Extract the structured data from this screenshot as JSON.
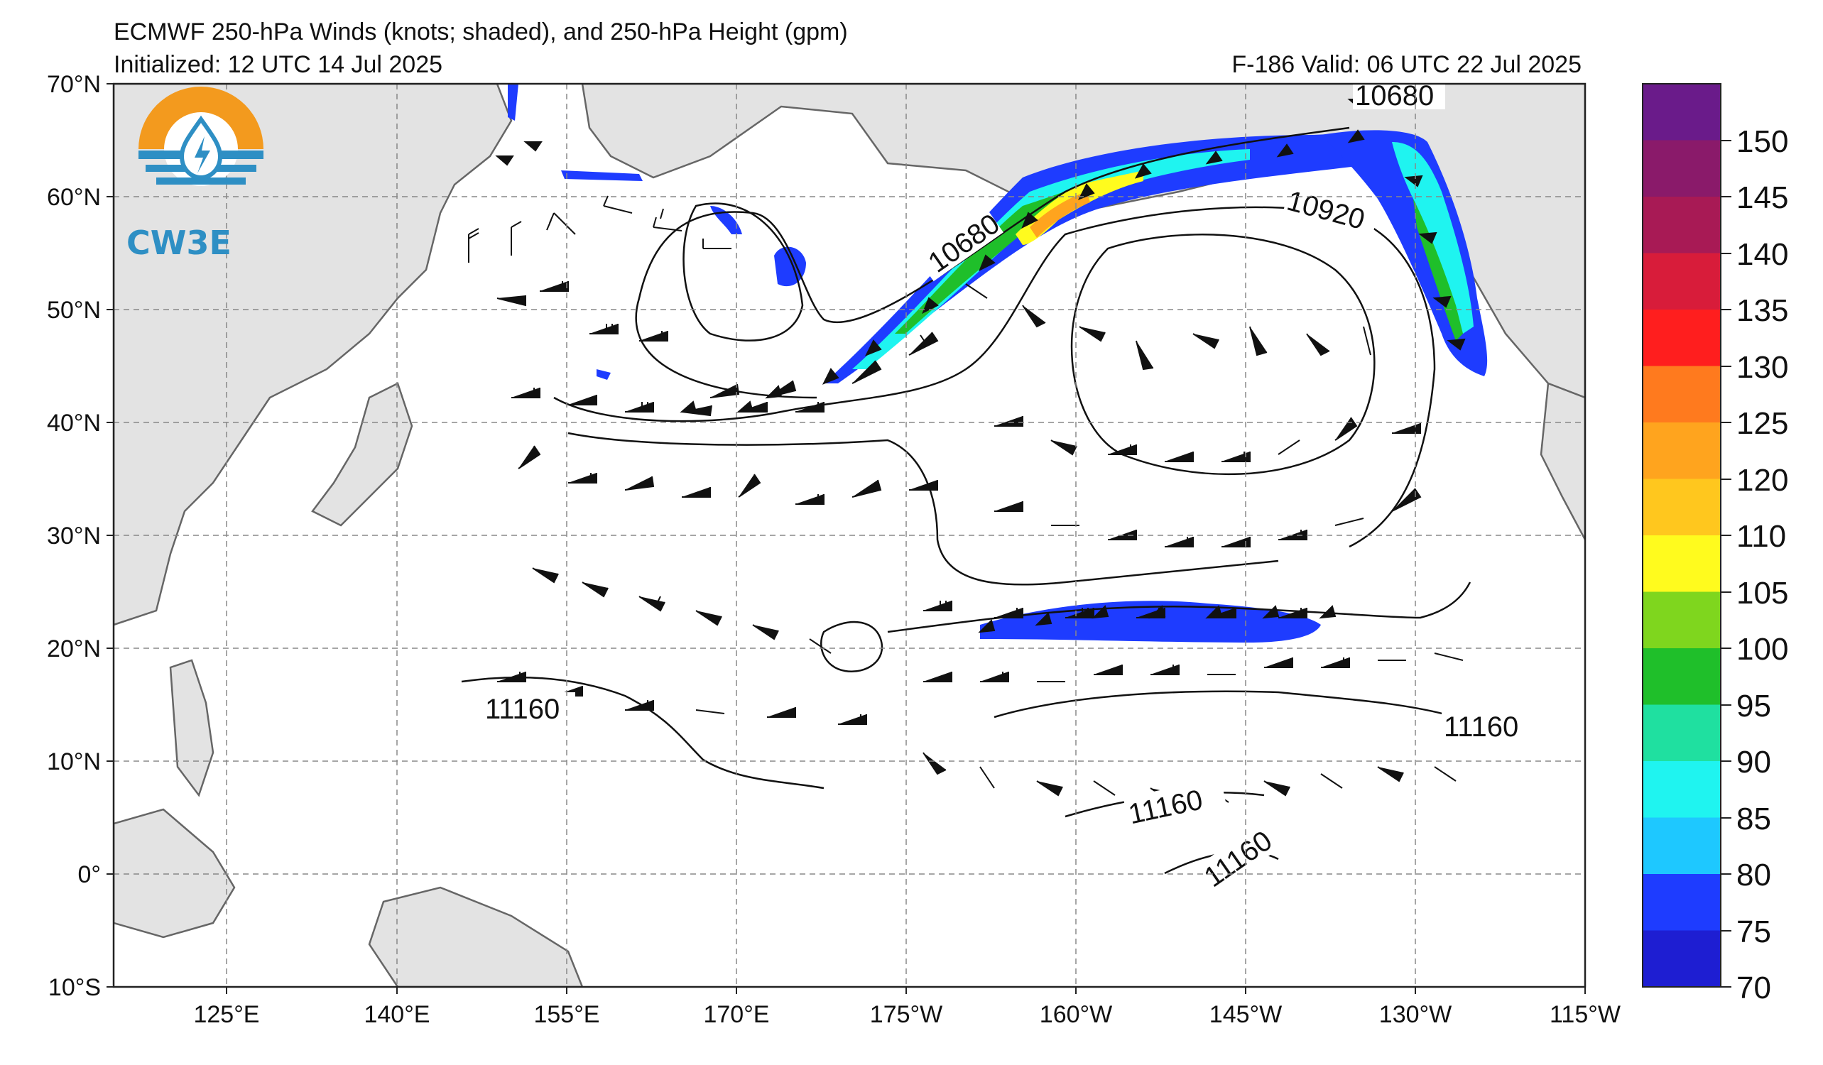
{
  "title": "ECMWF 250-hPa Winds (knots; shaded), and 250-hPa Height (gpm)",
  "initialized": "Initialized: 12 UTC 14 Jul 2025",
  "valid": "F-186  Valid: 06 UTC 22 Jul 2025",
  "logo": {
    "text": "CW3E",
    "icon": "water-drop-sun-icon"
  },
  "lat_labels": [
    "70°N",
    "60°N",
    "50°N",
    "40°N",
    "30°N",
    "20°N",
    "10°N",
    "0°",
    "10°S"
  ],
  "lon_labels": [
    "125°E",
    "140°E",
    "155°E",
    "170°E",
    "175°W",
    "160°W",
    "145°W",
    "130°W",
    "115°W"
  ],
  "colorbar": {
    "labels": [
      "150",
      "145",
      "140",
      "135",
      "130",
      "125",
      "120",
      "110",
      "105",
      "100",
      "95",
      "90",
      "85",
      "80",
      "75",
      "70"
    ],
    "colors": [
      "#6a1b8a",
      "#8a1a6a",
      "#a81a55",
      "#d81c3a",
      "#ff1e1e",
      "#ff7a1e",
      "#ffa41e",
      "#ffc71e",
      "#fffb1e",
      "#7fd61e",
      "#1fbf2a",
      "#1fe0a0",
      "#1ff4f0",
      "#1ec8ff",
      "#1e3cff",
      "#1e1ed2"
    ]
  },
  "contour_labels": [
    "10680",
    "10680",
    "10920",
    "11160",
    "11160",
    "11160",
    "11160"
  ],
  "colors": {
    "land": "#e3e3e3",
    "ocean": "#ffffff",
    "grid": "#888888",
    "coast": "#666666"
  }
}
